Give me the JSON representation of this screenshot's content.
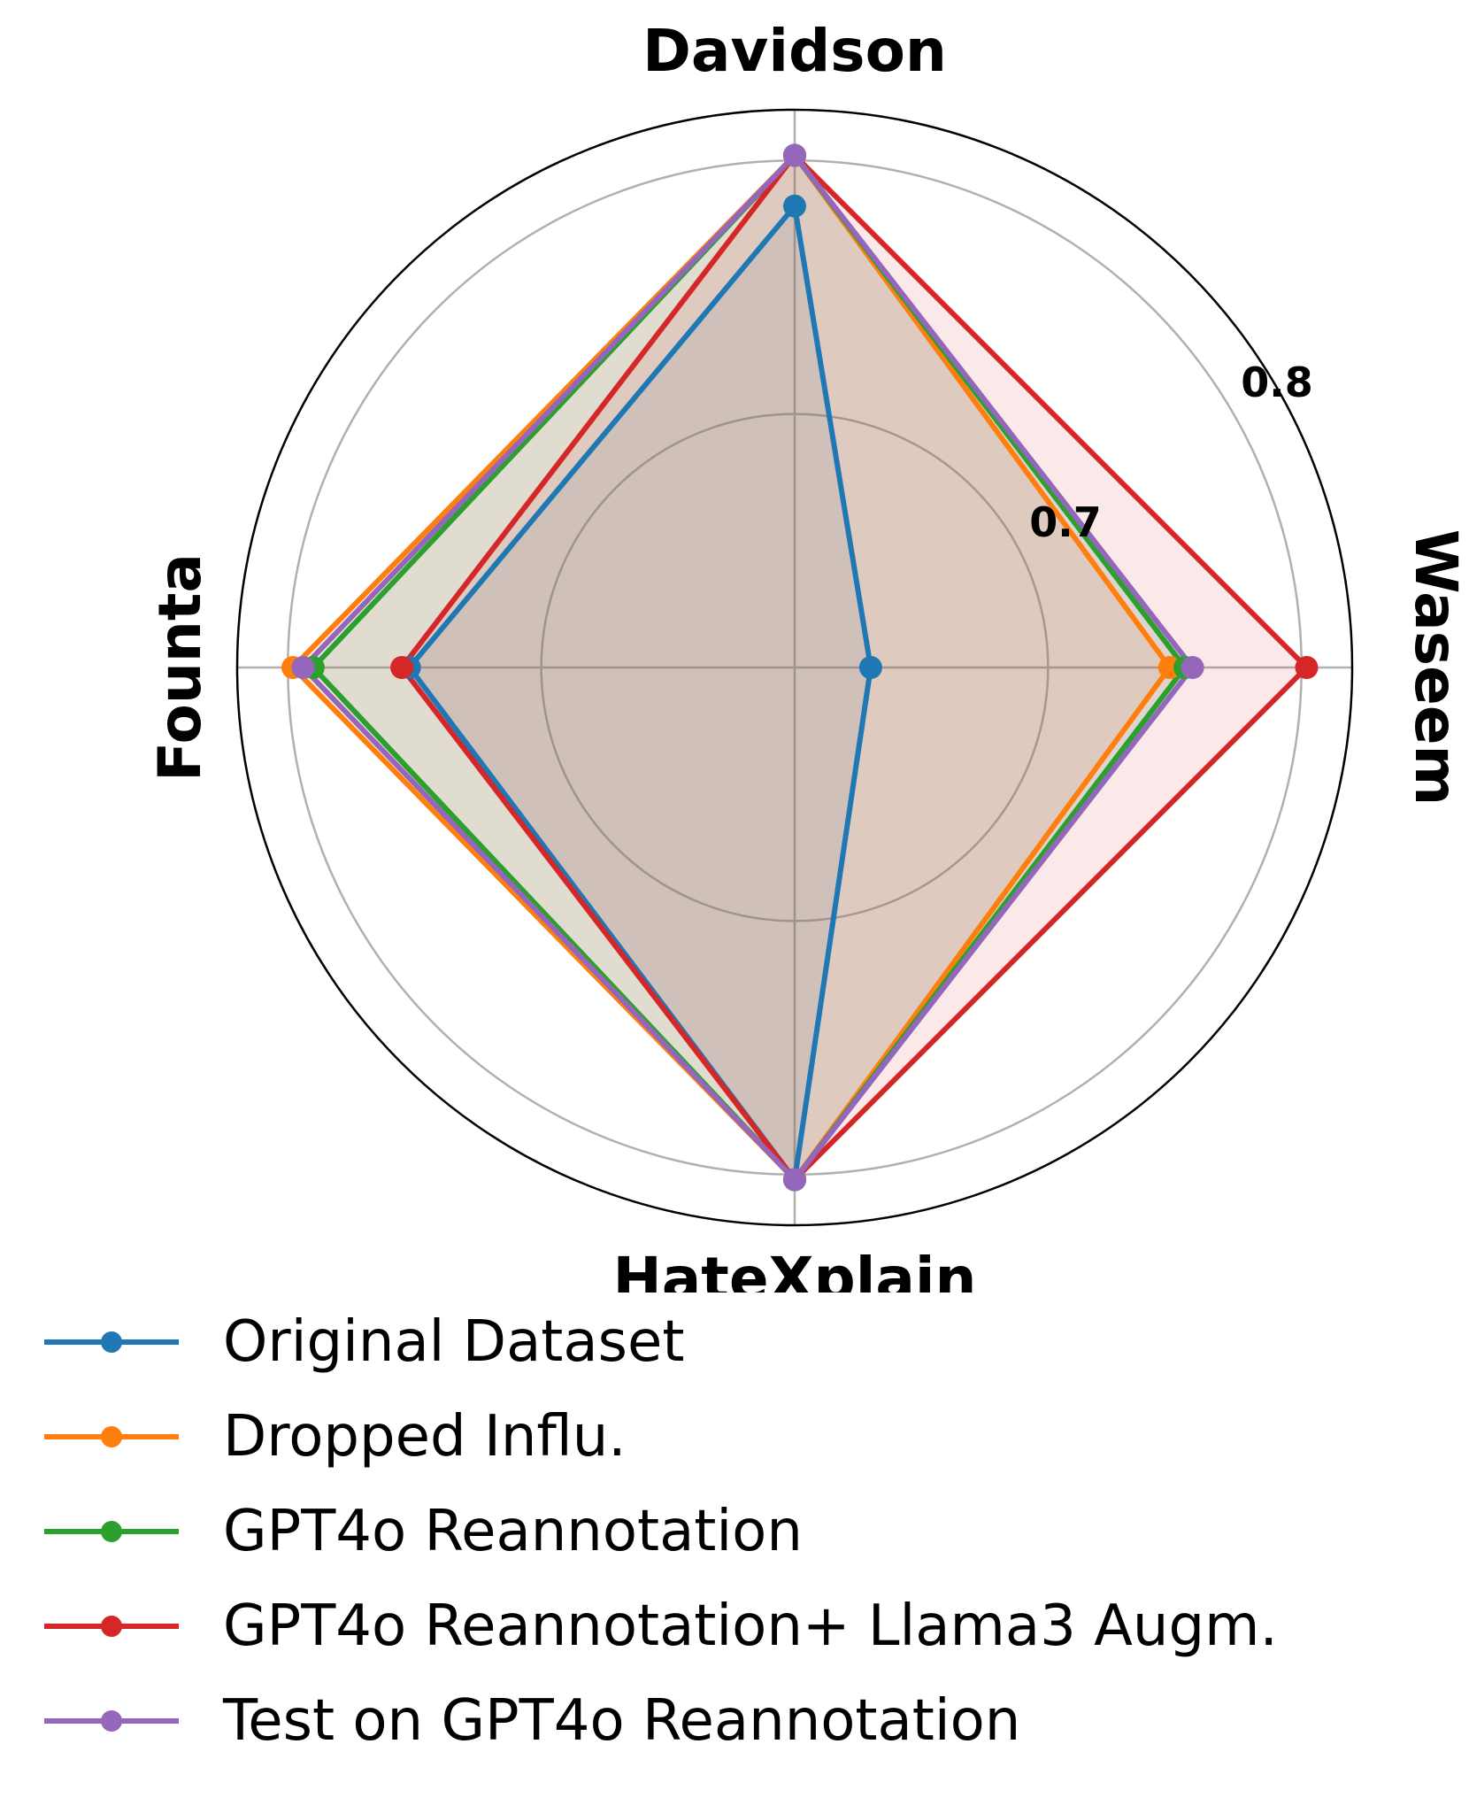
{
  "chart_data": {
    "type": "radar",
    "axes": [
      "Davidson",
      "Waseem",
      "HateXplain",
      "Founta"
    ],
    "radial_ticks": [
      "0.7",
      "0.8"
    ],
    "rlim": [
      0.6,
      0.82
    ],
    "grid": true,
    "legend_position": "bottom",
    "series": [
      {
        "name": "Original Dataset",
        "color": "#1f77b4",
        "values": [
          0.782,
          0.63,
          0.802,
          0.752
        ],
        "fill": false
      },
      {
        "name": "Dropped Influ.",
        "color": "#ff7f0e",
        "values": [
          0.802,
          0.748,
          0.802,
          0.798
        ],
        "fill": false
      },
      {
        "name": "GPT4o Reannotation",
        "color": "#2ca02c",
        "values": [
          0.802,
          0.754,
          0.802,
          0.79
        ],
        "fill": true
      },
      {
        "name": "GPT4o Reannotation+ Llama3 Augm.",
        "color": "#d62728",
        "values": [
          0.802,
          0.802,
          0.802,
          0.755
        ],
        "fill": true
      },
      {
        "name": "Test on GPT4o Reannotation",
        "color": "#9467bd",
        "values": [
          0.802,
          0.757,
          0.802,
          0.794
        ],
        "fill": false
      }
    ]
  }
}
